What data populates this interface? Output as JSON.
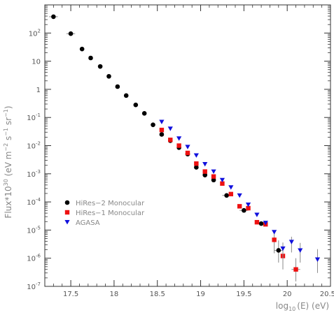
{
  "chart_data": {
    "type": "scatter",
    "title": "",
    "xlabel": {
      "base": "log",
      "sub": "10",
      "rest": "(E) (eV)"
    },
    "ylabel": {
      "main": "Flux*10",
      "main_sup": "30",
      "unit_open": " (eV m",
      "m_sup": "−2",
      "s_part": " s",
      "s_sup": "−1",
      "sr_part": " sr",
      "sr_sup": "−1",
      "unit_close": ")"
    },
    "xlim": [
      17.2,
      20.5
    ],
    "ylim_log10": [
      -7,
      3
    ],
    "y_scale": "log",
    "grid": false,
    "legend_position": "lower-left",
    "x_ticks": [
      {
        "value": 17.5,
        "label": "17.5"
      },
      {
        "value": 18,
        "label": "18"
      },
      {
        "value": 18.5,
        "label": "18.5"
      },
      {
        "value": 19,
        "label": "19"
      },
      {
        "value": 19.5,
        "label": "19.5"
      },
      {
        "value": 20,
        "label": "20"
      },
      {
        "value": 20.5,
        "label": "20.5"
      }
    ],
    "y_ticks": [
      {
        "exp": 2,
        "base": "10",
        "sup": "2"
      },
      {
        "exp": 1,
        "base": "10",
        "sup": ""
      },
      {
        "exp": 0,
        "base": "1",
        "sup": ""
      },
      {
        "exp": -1,
        "base": "10",
        "sup": "-1"
      },
      {
        "exp": -2,
        "base": "10",
        "sup": "-2"
      },
      {
        "exp": -3,
        "base": "10",
        "sup": "-3"
      },
      {
        "exp": -4,
        "base": "10",
        "sup": "-4"
      },
      {
        "exp": -5,
        "base": "10",
        "sup": "-5"
      },
      {
        "exp": -6,
        "base": "10",
        "sup": "-6"
      },
      {
        "exp": -7,
        "base": "10",
        "sup": "-7"
      }
    ],
    "series": [
      {
        "name": "HiRes−2 Monocular",
        "marker": "circle",
        "color": "#000000",
        "points": [
          {
            "x": 17.3,
            "y": 380,
            "xerr": 0.05
          },
          {
            "x": 17.5,
            "y": 95,
            "xerr": 0.05
          },
          {
            "x": 17.63,
            "y": 27
          },
          {
            "x": 17.73,
            "y": 13
          },
          {
            "x": 17.84,
            "y": 6.5
          },
          {
            "x": 17.94,
            "y": 2.9
          },
          {
            "x": 18.04,
            "y": 1.25
          },
          {
            "x": 18.14,
            "y": 0.6
          },
          {
            "x": 18.25,
            "y": 0.28
          },
          {
            "x": 18.35,
            "y": 0.14
          },
          {
            "x": 18.45,
            "y": 0.055
          },
          {
            "x": 18.55,
            "y": 0.025
          },
          {
            "x": 18.65,
            "y": 0.015
          },
          {
            "x": 18.75,
            "y": 0.0085
          },
          {
            "x": 18.85,
            "y": 0.005
          },
          {
            "x": 18.95,
            "y": 0.0017
          },
          {
            "x": 19.05,
            "y": 0.0009
          },
          {
            "x": 19.15,
            "y": 0.0006
          },
          {
            "x": 19.3,
            "y": 0.00017,
            "xerr": 0.05
          },
          {
            "x": 19.5,
            "y": 5e-05,
            "xerr": 0.05
          },
          {
            "x": 19.7,
            "y": 1.7e-05,
            "xerr": 0.05
          },
          {
            "x": 19.9,
            "y": 1.9e-06,
            "xerr": 0.05,
            "yerr_lo": 1.2e-06,
            "yerr_hi": 2.4e-06
          }
        ]
      },
      {
        "name": "HiRes−1 Monocular",
        "marker": "square",
        "color": "#ee1111",
        "points": [
          {
            "x": 18.55,
            "y": 0.036
          },
          {
            "x": 18.65,
            "y": 0.016
          },
          {
            "x": 18.75,
            "y": 0.01
          },
          {
            "x": 18.85,
            "y": 0.0055
          },
          {
            "x": 18.95,
            "y": 0.0023
          },
          {
            "x": 19.05,
            "y": 0.0012
          },
          {
            "x": 19.15,
            "y": 0.0008
          },
          {
            "x": 19.25,
            "y": 0.00045
          },
          {
            "x": 19.35,
            "y": 0.00019
          },
          {
            "x": 19.45,
            "y": 7e-05
          },
          {
            "x": 19.55,
            "y": 6e-05
          },
          {
            "x": 19.65,
            "y": 1.9e-05
          },
          {
            "x": 19.75,
            "y": 1.6e-05
          },
          {
            "x": 19.85,
            "y": 4.5e-06,
            "yerr_lo": 3e-06,
            "yerr_hi": 3e-06
          },
          {
            "x": 19.95,
            "y": 1.2e-06,
            "yerr_lo": 8e-07,
            "yerr_hi": 2e-06
          },
          {
            "x": 20.1,
            "y": 4e-07,
            "xerr": 0.05,
            "yerr_lo": 2.5e-07,
            "yerr_hi": 6e-07
          }
        ]
      },
      {
        "name": "AGASA",
        "marker": "triangle-down",
        "color": "#1111dd",
        "points": [
          {
            "x": 18.55,
            "y": 0.07
          },
          {
            "x": 18.65,
            "y": 0.04
          },
          {
            "x": 18.75,
            "y": 0.018
          },
          {
            "x": 18.85,
            "y": 0.009
          },
          {
            "x": 18.95,
            "y": 0.0045
          },
          {
            "x": 19.05,
            "y": 0.0022
          },
          {
            "x": 19.15,
            "y": 0.0012
          },
          {
            "x": 19.25,
            "y": 0.0006
          },
          {
            "x": 19.35,
            "y": 0.00033
          },
          {
            "x": 19.45,
            "y": 0.00017
          },
          {
            "x": 19.55,
            "y": 8e-05
          },
          {
            "x": 19.65,
            "y": 3.5e-05
          },
          {
            "x": 19.75,
            "y": 1.8e-05
          },
          {
            "x": 19.85,
            "y": 8.5e-06
          },
          {
            "x": 19.95,
            "y": 2.2e-06,
            "yerr_lo": 1.4e-06,
            "yerr_hi": 1.4e-06
          },
          {
            "x": 20.05,
            "y": 3.8e-06,
            "yerr_lo": 2.2e-06,
            "yerr_hi": 2e-06
          },
          {
            "x": 20.15,
            "y": 1.9e-06,
            "yerr_lo": 1.2e-06,
            "yerr_hi": 1.6e-06
          },
          {
            "x": 20.35,
            "y": 9e-07,
            "yerr_lo": 6e-07,
            "yerr_hi": 1.2e-06
          }
        ]
      }
    ]
  }
}
